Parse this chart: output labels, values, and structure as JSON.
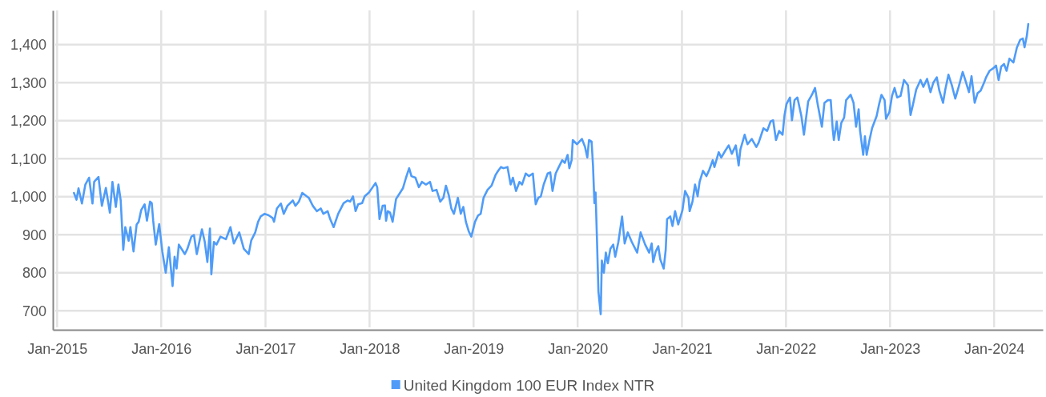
{
  "chart_data": {
    "type": "line",
    "x": [
      "2015-03-01",
      "2015-03-10",
      "2015-03-17",
      "2015-03-29",
      "2015-04-10",
      "2015-04-23",
      "2015-05-05",
      "2015-05-11",
      "2015-05-26",
      "2015-06-07",
      "2015-06-21",
      "2015-07-05",
      "2015-07-14",
      "2015-07-26",
      "2015-08-04",
      "2015-08-12",
      "2015-08-21",
      "2015-08-28",
      "2015-09-09",
      "2015-09-15",
      "2015-09-26",
      "2015-10-07",
      "2015-10-14",
      "2015-10-23",
      "2015-11-04",
      "2015-11-12",
      "2015-11-23",
      "2015-11-29",
      "2015-12-04",
      "2015-12-13",
      "2015-12-25",
      "2016-01-05",
      "2016-01-17",
      "2016-01-28",
      "2016-02-10",
      "2016-02-17",
      "2016-02-24",
      "2016-03-03",
      "2016-03-24",
      "2016-04-02",
      "2016-04-16",
      "2016-04-25",
      "2016-05-05",
      "2016-05-23",
      "2016-06-02",
      "2016-06-11",
      "2016-06-20",
      "2016-06-25",
      "2016-07-04",
      "2016-07-13",
      "2016-07-27",
      "2016-08-15",
      "2016-08-31",
      "2016-09-12",
      "2016-10-01",
      "2016-10-17",
      "2016-11-03",
      "2016-11-12",
      "2016-11-26",
      "2016-12-06",
      "2016-12-15",
      "2016-12-29",
      "2017-01-12",
      "2017-01-26",
      "2017-01-31",
      "2017-02-10",
      "2017-02-24",
      "2017-03-06",
      "2017-03-19",
      "2017-04-07",
      "2017-04-16",
      "2017-04-28",
      "2017-05-10",
      "2017-06-02",
      "2017-06-16",
      "2017-06-30",
      "2017-07-14",
      "2017-07-23",
      "2017-08-07",
      "2017-08-16",
      "2017-08-28",
      "2017-09-13",
      "2017-10-02",
      "2017-10-16",
      "2017-10-25",
      "2017-11-04",
      "2017-11-13",
      "2017-11-22",
      "2017-12-06",
      "2017-12-15",
      "2017-12-30",
      "2018-01-12",
      "2018-01-22",
      "2018-01-28",
      "2018-02-05",
      "2018-02-16",
      "2018-02-24",
      "2018-02-28",
      "2018-03-06",
      "2018-03-14",
      "2018-03-23",
      "2018-04-04",
      "2018-04-16",
      "2018-04-28",
      "2018-05-09",
      "2018-05-20",
      "2018-05-28",
      "2018-06-11",
      "2018-06-23",
      "2018-07-04",
      "2018-07-18",
      "2018-08-01",
      "2018-08-10",
      "2018-08-24",
      "2018-09-06",
      "2018-09-17",
      "2018-09-26",
      "2018-10-06",
      "2018-10-15",
      "2018-10-24",
      "2018-11-07",
      "2018-11-17",
      "2018-11-26",
      "2018-12-05",
      "2018-12-15",
      "2018-12-24",
      "2019-01-06",
      "2019-01-17",
      "2019-01-26",
      "2019-02-05",
      "2019-02-19",
      "2019-03-05",
      "2019-03-19",
      "2019-03-28",
      "2019-04-07",
      "2019-04-16",
      "2019-04-30",
      "2019-05-11",
      "2019-05-19",
      "2019-05-30",
      "2019-06-11",
      "2019-06-20",
      "2019-07-03",
      "2019-07-14",
      "2019-07-28",
      "2019-08-07",
      "2019-08-16",
      "2019-08-25",
      "2019-09-04",
      "2019-09-18",
      "2019-09-27",
      "2019-10-05",
      "2019-10-16",
      "2019-10-25",
      "2019-11-08",
      "2019-11-17",
      "2019-11-27",
      "2019-12-03",
      "2019-12-11",
      "2019-12-15",
      "2019-12-30",
      "2020-01-16",
      "2020-01-27",
      "2020-02-04",
      "2020-02-10",
      "2020-02-19",
      "2020-02-24",
      "2020-02-29",
      "2020-03-04",
      "2020-03-09",
      "2020-03-14",
      "2020-03-22",
      "2020-03-26",
      "2020-04-02",
      "2020-04-09",
      "2020-04-16",
      "2020-04-25",
      "2020-05-05",
      "2020-05-12",
      "2020-05-23",
      "2020-06-05",
      "2020-06-14",
      "2020-06-25",
      "2020-07-09",
      "2020-07-28",
      "2020-08-09",
      "2020-08-25",
      "2020-09-08",
      "2020-09-17",
      "2020-09-22",
      "2020-10-01",
      "2020-10-10",
      "2020-10-17",
      "2020-10-29",
      "2020-11-05",
      "2020-11-10",
      "2020-11-21",
      "2020-11-29",
      "2020-12-08",
      "2020-12-19",
      "2021-01-03",
      "2021-01-12",
      "2021-01-24",
      "2021-01-28",
      "2021-02-07",
      "2021-02-16",
      "2021-02-25",
      "2021-03-04",
      "2021-03-16",
      "2021-03-28",
      "2021-04-07",
      "2021-04-19",
      "2021-04-25",
      "2021-05-10",
      "2021-05-19",
      "2021-06-02",
      "2021-06-14",
      "2021-06-25",
      "2021-07-09",
      "2021-07-19",
      "2021-07-25",
      "2021-08-09",
      "2021-08-19",
      "2021-09-03",
      "2021-09-19",
      "2021-09-27",
      "2021-10-14",
      "2021-10-27",
      "2021-11-08",
      "2021-11-17",
      "2021-11-27",
      "2021-12-08",
      "2021-12-20",
      "2021-12-27",
      "2022-01-03",
      "2022-01-15",
      "2022-01-22",
      "2022-01-31",
      "2022-02-10",
      "2022-02-24",
      "2022-03-05",
      "2022-03-20",
      "2022-04-02",
      "2022-04-13",
      "2022-04-22",
      "2022-05-07",
      "2022-05-16",
      "2022-05-28",
      "2022-06-07",
      "2022-06-14",
      "2022-06-18",
      "2022-06-28",
      "2022-07-05",
      "2022-07-14",
      "2022-07-24",
      "2022-07-31",
      "2022-08-16",
      "2022-08-26",
      "2022-09-04",
      "2022-09-13",
      "2022-09-18",
      "2022-09-29",
      "2022-10-05",
      "2022-10-11",
      "2022-10-21",
      "2022-10-30",
      "2022-11-15",
      "2022-11-24",
      "2022-12-02",
      "2022-12-13",
      "2022-12-18",
      "2022-12-30",
      "2023-01-08",
      "2023-01-17",
      "2023-01-26",
      "2023-02-07",
      "2023-02-19",
      "2023-03-05",
      "2023-03-14",
      "2023-03-23",
      "2023-04-03",
      "2023-04-18",
      "2023-04-28",
      "2023-05-11",
      "2023-05-23",
      "2023-06-02",
      "2023-06-14",
      "2023-06-23",
      "2023-07-06",
      "2023-07-14",
      "2023-07-25",
      "2023-08-06",
      "2023-08-18",
      "2023-08-30",
      "2023-09-13",
      "2023-09-22",
      "2023-10-05",
      "2023-10-14",
      "2023-10-25",
      "2023-11-04",
      "2023-11-15",
      "2023-11-27",
      "2023-12-04",
      "2023-12-16",
      "2023-12-30",
      "2024-01-08",
      "2024-01-17",
      "2024-01-26",
      "2024-02-05",
      "2024-02-14",
      "2024-02-24",
      "2024-03-09",
      "2024-03-21",
      "2024-04-02",
      "2024-04-11",
      "2024-04-17",
      "2024-04-25",
      "2024-04-30"
    ],
    "series": [
      {
        "name": "United Kingdom 100 EUR Index NTR",
        "color": "#4f9cf8",
        "values": [
          1010,
          992,
          1022,
          982,
          1032,
          1050,
          982,
          1039,
          1052,
          976,
          1023,
          958,
          1039,
          973,
          1032,
          990,
          860,
          920,
          884,
          920,
          856,
          927,
          934,
          965,
          980,
          937,
          987,
          983,
          937,
          874,
          928,
          856,
          800,
          867,
          765,
          842,
          811,
          874,
          849,
          863,
          895,
          899,
          849,
          914,
          881,
          828,
          916,
          796,
          881,
          874,
          895,
          888,
          920,
          877,
          906,
          863,
          849,
          885,
          906,
          934,
          948,
          955,
          951,
          944,
          934,
          969,
          982,
          955,
          976,
          990,
          976,
          987,
          1010,
          997,
          976,
          962,
          969,
          955,
          962,
          941,
          920,
          955,
          983,
          990,
          987,
          1001,
          962,
          980,
          983,
          1001,
          1011,
          1025,
          1036,
          1025,
          941,
          976,
          977,
          937,
          962,
          958,
          934,
          994,
          1008,
          1022,
          1050,
          1075,
          1054,
          1050,
          1025,
          1039,
          1032,
          1039,
          1015,
          1018,
          987,
          997,
          1029,
          1004,
          969,
          955,
          997,
          955,
          973,
          934,
          909,
          895,
          934,
          951,
          955,
          997,
          1018,
          1029,
          1057,
          1068,
          1078,
          1075,
          1078,
          1032,
          1050,
          1015,
          1039,
          1032,
          1061,
          1054,
          1061,
          980,
          997,
          1001,
          1032,
          1061,
          1064,
          1015,
          1061,
          1075,
          1096,
          1089,
          1110,
          1075,
          1096,
          1149,
          1138,
          1152,
          1131,
          1103,
          1149,
          1145,
          1082,
          983,
          1011,
          885,
          751,
          691,
          832,
          800,
          853,
          825,
          863,
          874,
          842,
          881,
          948,
          877,
          906,
          881,
          853,
          906,
          874,
          853,
          877,
          828,
          856,
          870,
          835,
          811,
          860,
          941,
          948,
          923,
          962,
          927,
          965,
          1015,
          997,
          962,
          987,
          1032,
          1001,
          1039,
          1068,
          1054,
          1071,
          1096,
          1078,
          1117,
          1103,
          1121,
          1135,
          1113,
          1135,
          1082,
          1124,
          1163,
          1138,
          1152,
          1131,
          1142,
          1180,
          1173,
          1198,
          1201,
          1149,
          1173,
          1163,
          1215,
          1244,
          1261,
          1201,
          1254,
          1261,
          1212,
          1163,
          1251,
          1268,
          1286,
          1244,
          1184,
          1247,
          1254,
          1254,
          1177,
          1149,
          1198,
          1149,
          1194,
          1208,
          1254,
          1268,
          1247,
          1184,
          1230,
          1173,
          1110,
          1159,
          1110,
          1149,
          1180,
          1212,
          1244,
          1268,
          1254,
          1205,
          1223,
          1265,
          1286,
          1261,
          1265,
          1307,
          1293,
          1215,
          1244,
          1282,
          1307,
          1289,
          1310,
          1275,
          1300,
          1314,
          1279,
          1247,
          1282,
          1321,
          1293,
          1258,
          1289,
          1328,
          1307,
          1275,
          1317,
          1247,
          1272,
          1279,
          1300,
          1314,
          1331,
          1338,
          1345,
          1307,
          1342,
          1349,
          1331,
          1363,
          1353,
          1392,
          1413,
          1416,
          1393,
          1423,
          1454
        ]
      }
    ],
    "xlim": [
      "2014-12-17",
      "2024-06-20"
    ],
    "xticks": [
      {
        "value": "2015-01",
        "label": "Jan-2015"
      },
      {
        "value": "2016-01",
        "label": "Jan-2016"
      },
      {
        "value": "2017-01",
        "label": "Jan-2017"
      },
      {
        "value": "2018-01",
        "label": "Jan-2018"
      },
      {
        "value": "2019-01",
        "label": "Jan-2019"
      },
      {
        "value": "2020-01",
        "label": "Jan-2020"
      },
      {
        "value": "2021-01",
        "label": "Jan-2021"
      },
      {
        "value": "2022-01",
        "label": "Jan-2022"
      },
      {
        "value": "2023-01",
        "label": "Jan-2023"
      },
      {
        "value": "2024-01",
        "label": "Jan-2024"
      }
    ],
    "ylim": [
      650,
      1490
    ],
    "yticks": [
      700,
      800,
      900,
      {
        "value": 1000,
        "label": "1,000"
      },
      {
        "value": 1100,
        "label": "1,100"
      },
      {
        "value": 1200,
        "label": "1,200"
      },
      {
        "value": 1300,
        "label": "1,300"
      },
      {
        "value": 1400,
        "label": "1,400"
      }
    ],
    "grid": true,
    "legend": "bottom"
  }
}
